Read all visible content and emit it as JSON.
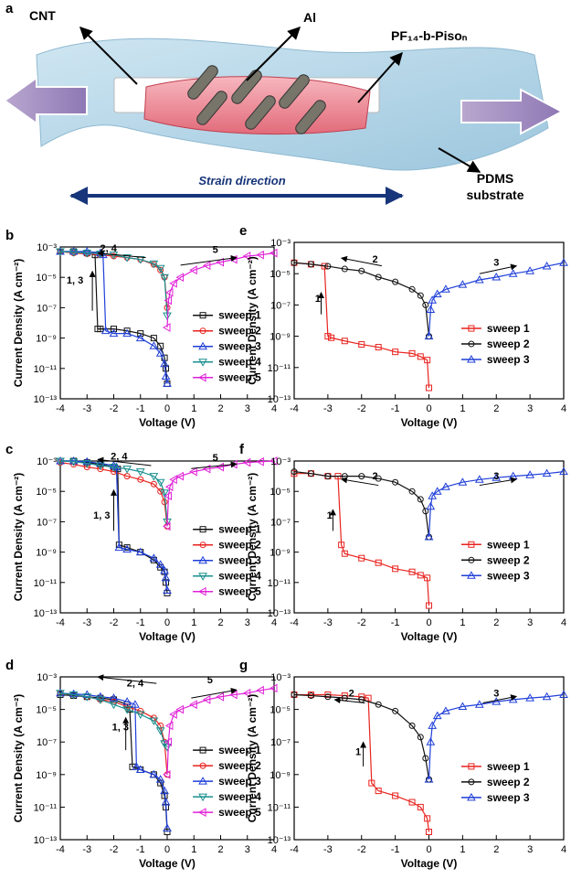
{
  "diagram": {
    "panel": "a",
    "cnt": "CNT",
    "al": "Al",
    "polymer": "PF₁₄-b-Pisoₙ",
    "substrate": [
      "PDMS",
      "substrate"
    ],
    "strain": "Strain direction"
  },
  "chart_data": [
    {
      "type": "line",
      "panel": "b",
      "xlabel": "Voltage (V)",
      "ylabel": "Current Density (A cm⁻²)",
      "log_y": true,
      "xlim": [
        -4,
        4
      ],
      "xticks": [
        -4,
        -3,
        -2,
        -1,
        0,
        1,
        2,
        3,
        4
      ],
      "ylim": [
        1e-13,
        0.001
      ],
      "yticks": [
        {
          "value": 1e-13,
          "label": "10⁻¹³"
        },
        {
          "value": 1e-11,
          "label": "10⁻¹¹"
        },
        {
          "value": 1e-09,
          "label": "10⁻⁹"
        },
        {
          "value": 1e-07,
          "label": "10⁻⁷"
        },
        {
          "value": 1e-05,
          "label": "10⁻⁵"
        },
        {
          "value": 0.001,
          "label": "10⁻³"
        }
      ],
      "annotations": [
        "2, 4",
        "5",
        "1, 3"
      ],
      "series": [
        {
          "name": "sweep 1",
          "color": "#111111",
          "x": [
            0,
            -0.05,
            -0.1,
            -0.25,
            -0.5,
            -1,
            -1.5,
            -2,
            -2.5,
            -2.6,
            -2.7,
            -3,
            -3.5,
            -4
          ],
          "values": [
            1e-12,
            1e-11,
            5e-11,
            3e-10,
            1e-09,
            2e-09,
            3e-09,
            4e-09,
            4e-09,
            4e-09,
            0.0003,
            0.0004,
            0.0005,
            0.0005
          ]
        },
        {
          "name": "sweep 2",
          "color": "#e8231f",
          "x": [
            -4,
            -3.5,
            -3,
            -2.5,
            -2,
            -1.5,
            -1,
            -0.5,
            -0.25,
            -0.1,
            0
          ],
          "values": [
            0.0005,
            0.0004,
            0.00035,
            0.0003,
            0.00025,
            0.0002,
            0.00015,
            7e-05,
            3e-05,
            1e-05,
            1e-07
          ]
        },
        {
          "name": "sweep 3",
          "color": "#1f3fd8",
          "x": [
            0,
            -0.05,
            -0.1,
            -0.25,
            -0.5,
            -1,
            -1.5,
            -2,
            -2.3,
            -2.4,
            -2.5,
            -3,
            -3.5,
            -4
          ],
          "values": [
            1e-12,
            3e-12,
            2e-11,
            1e-10,
            3e-10,
            1e-09,
            2e-09,
            2e-09,
            3e-09,
            0.0003,
            0.0004,
            0.0005,
            0.0005,
            0.0005
          ]
        },
        {
          "name": "sweep 4",
          "color": "#1a8f8f",
          "x": [
            -4,
            -3.5,
            -3,
            -2.5,
            -2,
            -1.5,
            -1,
            -0.5,
            -0.25,
            -0.1,
            0
          ],
          "values": [
            0.0005,
            0.00045,
            0.0004,
            0.00035,
            0.0003,
            0.0002,
            0.00015,
            8e-05,
            4e-05,
            1e-05,
            3e-08
          ]
        },
        {
          "name": "sweep 5",
          "color": "#e020d8",
          "x": [
            0,
            0.05,
            0.1,
            0.25,
            0.5,
            1,
            1.5,
            2,
            2.5,
            3,
            3.5,
            4
          ],
          "values": [
            5e-09,
            3e-07,
            1e-06,
            4e-06,
            1e-05,
            3e-05,
            6e-05,
            0.0001,
            0.00015,
            0.00025,
            0.0003,
            0.0004
          ]
        }
      ]
    },
    {
      "type": "line",
      "panel": "c",
      "xlabel": "Voltage (V)",
      "ylabel": "Current Density (A cm⁻²)",
      "log_y": true,
      "xlim": [
        -4,
        4
      ],
      "xticks": [
        -4,
        -3,
        -2,
        -1,
        0,
        1,
        2,
        3,
        4
      ],
      "ylim": [
        1e-13,
        0.001
      ],
      "yticks": [
        {
          "value": 1e-13,
          "label": "10⁻¹³"
        },
        {
          "value": 1e-11,
          "label": "10⁻¹¹"
        },
        {
          "value": 1e-09,
          "label": "10⁻⁹"
        },
        {
          "value": 1e-07,
          "label": "10⁻⁷"
        },
        {
          "value": 1e-05,
          "label": "10⁻⁵"
        },
        {
          "value": 0.001,
          "label": "10⁻³"
        }
      ],
      "annotations": [
        "2, 4",
        "5",
        "1, 3"
      ],
      "series": [
        {
          "name": "sweep 1",
          "color": "#111111",
          "x": [
            0,
            -0.05,
            -0.1,
            -0.25,
            -0.5,
            -1,
            -1.5,
            -1.8,
            -1.85,
            -2,
            -2.5,
            -3,
            -3.5,
            -4
          ],
          "values": [
            2e-12,
            1e-11,
            5e-11,
            1e-10,
            3e-10,
            1e-09,
            2e-09,
            3e-09,
            0.0003,
            0.0004,
            0.0006,
            0.0008,
            0.001,
            0.001
          ]
        },
        {
          "name": "sweep 2",
          "color": "#e8231f",
          "x": [
            -4,
            -3.5,
            -3,
            -2.5,
            -2,
            -1.5,
            -1,
            -0.5,
            -0.25,
            -0.1,
            0
          ],
          "values": [
            0.0008,
            0.0006,
            0.0004,
            0.0003,
            0.0002,
            0.0001,
            6e-05,
            3e-05,
            1e-05,
            2e-06,
            5e-08
          ]
        },
        {
          "name": "sweep 3",
          "color": "#1f3fd8",
          "x": [
            0,
            -0.05,
            -0.1,
            -0.25,
            -0.5,
            -1,
            -1.5,
            -1.8,
            -1.9,
            -2,
            -2.5,
            -3,
            -3.5,
            -4
          ],
          "values": [
            3e-12,
            2e-11,
            6e-11,
            1.5e-10,
            4e-10,
            1e-09,
            1.5e-09,
            2e-09,
            0.0004,
            0.0005,
            0.0007,
            0.0009,
            0.001,
            0.001
          ]
        },
        {
          "name": "sweep 4",
          "color": "#1a8f8f",
          "x": [
            -4,
            -3.5,
            -3,
            -2.5,
            -2,
            -1.5,
            -1,
            -0.5,
            -0.25,
            -0.1,
            0
          ],
          "values": [
            0.001,
            0.0009,
            0.0007,
            0.0005,
            0.0004,
            0.0003,
            0.0002,
            0.0001,
            4e-05,
            8e-06,
            1e-07
          ]
        },
        {
          "name": "sweep 5",
          "color": "#e020d8",
          "x": [
            0,
            0.05,
            0.1,
            0.25,
            0.5,
            1,
            1.5,
            2,
            2.5,
            3,
            3.5,
            4
          ],
          "values": [
            5e-08,
            5e-06,
            2e-05,
            6e-05,
            0.0001,
            0.0002,
            0.0003,
            0.0004,
            0.0006,
            0.0008,
            0.0009,
            0.001
          ]
        }
      ]
    },
    {
      "type": "line",
      "panel": "d",
      "xlabel": "Voltage (V)",
      "ylabel": "Current Density (A cm⁻²)",
      "log_y": true,
      "xlim": [
        -4,
        4
      ],
      "xticks": [
        -4,
        -3,
        -2,
        -1,
        0,
        1,
        2,
        3,
        4
      ],
      "ylim": [
        1e-13,
        0.001
      ],
      "yticks": [
        {
          "value": 1e-13,
          "label": "10⁻¹³"
        },
        {
          "value": 1e-11,
          "label": "10⁻¹¹"
        },
        {
          "value": 1e-09,
          "label": "10⁻⁹"
        },
        {
          "value": 1e-07,
          "label": "10⁻⁷"
        },
        {
          "value": 1e-05,
          "label": "10⁻⁵"
        },
        {
          "value": 0.001,
          "label": "10⁻³"
        }
      ],
      "annotations": [
        "2, 4",
        "5",
        "1, 3"
      ],
      "series": [
        {
          "name": "sweep 1",
          "color": "#111111",
          "x": [
            0,
            -0.05,
            -0.1,
            -0.25,
            -0.5,
            -1,
            -1.3,
            -1.4,
            -1.5,
            -2,
            -2.5,
            -3,
            -3.5,
            -4
          ],
          "values": [
            3e-13,
            1e-11,
            5e-11,
            3e-10,
            1e-09,
            2e-09,
            3e-09,
            1e-05,
            2e-05,
            4e-05,
            5e-05,
            6e-05,
            7e-05,
            8e-05
          ]
        },
        {
          "name": "sweep 2",
          "color": "#e8231f",
          "x": [
            -4,
            -3.5,
            -3,
            -2.5,
            -2,
            -1.5,
            -1,
            -0.5,
            -0.25,
            -0.1,
            0
          ],
          "values": [
            0.0001,
            8e-05,
            6e-05,
            4e-05,
            3e-05,
            1.5e-05,
            8e-06,
            3e-06,
            1e-06,
            1e-07,
            1e-09
          ]
        },
        {
          "name": "sweep 3",
          "color": "#1f3fd8",
          "x": [
            0,
            -0.05,
            -0.1,
            -0.25,
            -0.5,
            -1,
            -1.15,
            -1.2,
            -1.5,
            -2,
            -2.5,
            -3,
            -3.5,
            -4
          ],
          "values": [
            5e-13,
            2e-11,
            1e-10,
            5e-10,
            1e-09,
            2e-09,
            3e-09,
            2e-05,
            3e-05,
            5e-05,
            6e-05,
            8e-05,
            9e-05,
            0.0001
          ]
        },
        {
          "name": "sweep 4",
          "color": "#1a8f8f",
          "x": [
            -4,
            -3.5,
            -3,
            -2.5,
            -2,
            -1.5,
            -1,
            -0.5,
            -0.25,
            -0.1,
            0
          ],
          "values": [
            0.0001,
            8e-05,
            6e-05,
            4e-05,
            2e-05,
            1e-05,
            5e-06,
            2e-06,
            5e-07,
            8e-08,
            5e-08
          ]
        },
        {
          "name": "sweep 5",
          "color": "#e020d8",
          "x": [
            0,
            0.05,
            0.1,
            0.25,
            0.5,
            1,
            1.5,
            2,
            2.5,
            3,
            3.5,
            4
          ],
          "values": [
            1e-09,
            1e-07,
            1e-06,
            5e-06,
            1e-05,
            2e-05,
            4e-05,
            6e-05,
            8e-05,
            0.0001,
            0.00015,
            0.0002
          ]
        }
      ]
    },
    {
      "type": "line",
      "panel": "e",
      "xlabel": "Voltage (V)",
      "ylabel": "Current Density (A cm⁻²)",
      "log_y": true,
      "xlim": [
        -4,
        4
      ],
      "xticks": [
        -4,
        -3,
        -2,
        -1,
        0,
        1,
        2,
        3,
        4
      ],
      "ylim": [
        1e-13,
        0.001
      ],
      "yticks": [
        {
          "value": 1e-13,
          "label": "10⁻¹³"
        },
        {
          "value": 1e-11,
          "label": "10⁻¹¹"
        },
        {
          "value": 1e-09,
          "label": "10⁻⁹"
        },
        {
          "value": 1e-07,
          "label": "10⁻⁷"
        },
        {
          "value": 1e-05,
          "label": "10⁻⁵"
        },
        {
          "value": 0.001,
          "label": "10⁻³"
        }
      ],
      "annotations": [
        "2",
        "3",
        "1"
      ],
      "series": [
        {
          "name": "sweep 1",
          "color": "#e8231f",
          "x": [
            0,
            -0.05,
            -0.25,
            -0.5,
            -1,
            -1.5,
            -2,
            -2.5,
            -2.9,
            -3,
            -3.1,
            -3.5,
            -4
          ],
          "values": [
            5e-13,
            3e-11,
            5e-11,
            8e-11,
            1e-10,
            2e-10,
            3e-10,
            5e-10,
            8e-10,
            1e-09,
            3e-05,
            4e-05,
            5e-05
          ]
        },
        {
          "name": "sweep 2",
          "color": "#111111",
          "x": [
            -4,
            -3.5,
            -3,
            -2.5,
            -2,
            -1.5,
            -1,
            -0.5,
            -0.25,
            -0.1,
            0
          ],
          "values": [
            5e-05,
            4e-05,
            3e-05,
            2e-05,
            1.5e-05,
            6e-06,
            3e-06,
            1e-06,
            4e-07,
            1e-07,
            1e-09
          ]
        },
        {
          "name": "sweep 3",
          "color": "#1f3fd8",
          "x": [
            0,
            0.05,
            0.1,
            0.25,
            0.5,
            1,
            1.5,
            2,
            2.5,
            3,
            3.5,
            4
          ],
          "values": [
            1e-09,
            5e-08,
            2e-07,
            5e-07,
            1e-06,
            2e-06,
            4e-06,
            6e-06,
            1e-05,
            1.5e-05,
            3e-05,
            5e-05
          ]
        }
      ]
    },
    {
      "type": "line",
      "panel": "f",
      "xlabel": "Voltage (V)",
      "ylabel": "Current Density (A cm⁻²)",
      "log_y": true,
      "xlim": [
        -4,
        4
      ],
      "xticks": [
        -4,
        -3,
        -2,
        -1,
        0,
        1,
        2,
        3,
        4
      ],
      "ylim": [
        1e-13,
        0.001
      ],
      "yticks": [
        {
          "value": 1e-13,
          "label": "10⁻¹³"
        },
        {
          "value": 1e-11,
          "label": "10⁻¹¹"
        },
        {
          "value": 1e-09,
          "label": "10⁻⁹"
        },
        {
          "value": 1e-07,
          "label": "10⁻⁷"
        },
        {
          "value": 1e-05,
          "label": "10⁻⁵"
        },
        {
          "value": 0.001,
          "label": "10⁻³"
        }
      ],
      "annotations": [
        "2",
        "3",
        "1"
      ],
      "series": [
        {
          "name": "sweep 1",
          "color": "#e8231f",
          "x": [
            0,
            -0.05,
            -0.25,
            -0.5,
            -1,
            -1.5,
            -2,
            -2.5,
            -2.6,
            -2.7,
            -3,
            -3.5,
            -4
          ],
          "values": [
            3e-13,
            2e-11,
            3e-11,
            5e-11,
            8e-11,
            2e-10,
            4e-10,
            8e-10,
            3e-09,
            0.0001,
            0.0001,
            0.00015,
            0.00015
          ]
        },
        {
          "name": "sweep 2",
          "color": "#111111",
          "x": [
            -4,
            -3.5,
            -3,
            -2.5,
            -2,
            -1.5,
            -1,
            -0.5,
            -0.25,
            -0.1,
            0
          ],
          "values": [
            0.0002,
            0.00015,
            0.0001,
            0.0001,
            0.0001,
            7e-05,
            4e-05,
            1e-05,
            3e-06,
            5e-07,
            1e-08
          ]
        },
        {
          "name": "sweep 3",
          "color": "#1f3fd8",
          "x": [
            0,
            0.05,
            0.1,
            0.25,
            0.5,
            1,
            1.5,
            2,
            2.5,
            3,
            3.5,
            4
          ],
          "values": [
            1e-08,
            1e-06,
            5e-06,
            1e-05,
            2e-05,
            4e-05,
            6e-05,
            8e-05,
            0.0001,
            0.00012,
            0.00015,
            0.0002
          ]
        }
      ]
    },
    {
      "type": "line",
      "panel": "g",
      "xlabel": "Voltage (V)",
      "ylabel": "Current Density (A cm⁻²)",
      "log_y": true,
      "xlim": [
        -4,
        4
      ],
      "xticks": [
        -4,
        -3,
        -2,
        -1,
        0,
        1,
        2,
        3,
        4
      ],
      "ylim": [
        1e-13,
        0.001
      ],
      "yticks": [
        {
          "value": 1e-13,
          "label": "10⁻¹³"
        },
        {
          "value": 1e-11,
          "label": "10⁻¹¹"
        },
        {
          "value": 1e-09,
          "label": "10⁻⁹"
        },
        {
          "value": 1e-07,
          "label": "10⁻⁷"
        },
        {
          "value": 1e-05,
          "label": "10⁻⁵"
        },
        {
          "value": 0.001,
          "label": "10⁻³"
        }
      ],
      "annotations": [
        "2",
        "3",
        "1"
      ],
      "series": [
        {
          "name": "sweep 1",
          "color": "#e8231f",
          "x": [
            0,
            -0.05,
            -0.25,
            -0.5,
            -1,
            -1.5,
            -1.7,
            -1.8,
            -2,
            -2.5,
            -3,
            -3.5,
            -4
          ],
          "values": [
            3e-13,
            2e-12,
            1e-11,
            2e-11,
            5e-11,
            1e-10,
            3e-10,
            5e-05,
            6e-05,
            7e-05,
            8e-05,
            8e-05,
            8e-05
          ]
        },
        {
          "name": "sweep 2",
          "color": "#111111",
          "x": [
            -4,
            -3.5,
            -3,
            -2.5,
            -2,
            -1.5,
            -1,
            -0.5,
            -0.25,
            -0.1,
            0
          ],
          "values": [
            8e-05,
            7e-05,
            6e-05,
            5e-05,
            4e-05,
            2e-05,
            8e-06,
            1e-06,
            2e-07,
            1e-08,
            5e-10
          ]
        },
        {
          "name": "sweep 3",
          "color": "#1f3fd8",
          "x": [
            0,
            0.05,
            0.1,
            0.25,
            0.5,
            1,
            1.5,
            2,
            2.5,
            3,
            3.5,
            4
          ],
          "values": [
            5e-10,
            1e-07,
            1e-06,
            4e-06,
            8e-06,
            1.5e-05,
            2e-05,
            3e-05,
            4e-05,
            5e-05,
            6e-05,
            8e-05
          ]
        }
      ]
    }
  ]
}
